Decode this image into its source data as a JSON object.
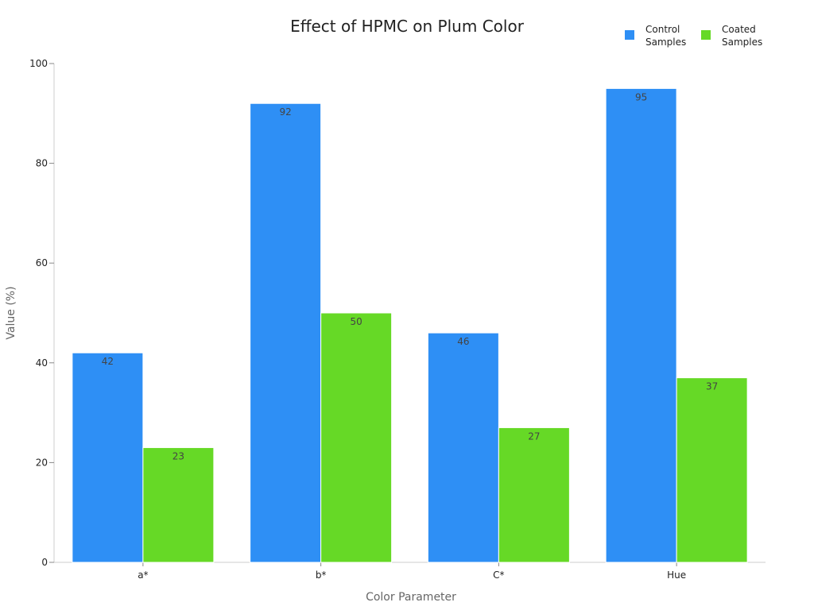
{
  "chart_data": {
    "type": "bar",
    "title": "Effect of HPMC on Plum Color",
    "xlabel": "Color Parameter",
    "ylabel": "Value (%)",
    "categories": [
      "a*",
      "b*",
      "C*",
      "Hue"
    ],
    "series": [
      {
        "name": "Control\nSamples",
        "color": "#2e8ff5",
        "values": [
          42,
          92,
          46,
          95
        ]
      },
      {
        "name": "Coated\nSamples",
        "color": "#66d926",
        "values": [
          23,
          50,
          27,
          37
        ]
      }
    ],
    "ylim": [
      0,
      100
    ],
    "yticks": [
      0,
      20,
      40,
      60,
      80,
      100
    ],
    "grid": false,
    "legend_position": "top-right",
    "data_labels": true
  }
}
